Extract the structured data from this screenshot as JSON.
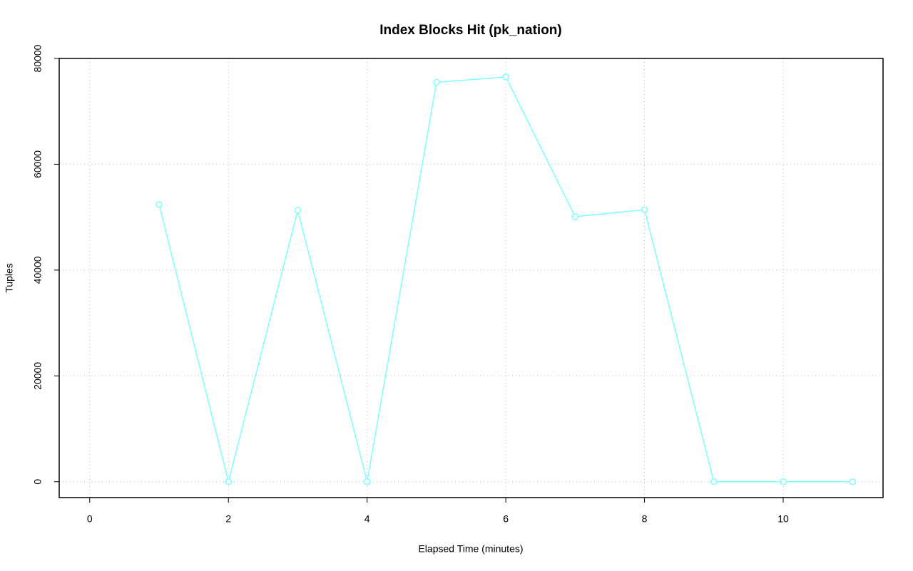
{
  "chart_data": {
    "type": "line",
    "title": "Index Blocks Hit (pk_nation)",
    "x_label": "Elapsed Time (minutes)",
    "y_label": "Tuples",
    "x": [
      1,
      2,
      3,
      4,
      5,
      6,
      7,
      8,
      9,
      10,
      11
    ],
    "series": [
      {
        "name": "pk_nation",
        "color": "#7fffff",
        "values": [
          52400,
          0,
          51300,
          0,
          75500,
          76500,
          50100,
          51400,
          0,
          0,
          0
        ]
      }
    ],
    "xlim": [
      -0.44,
      11.44
    ],
    "xticks": [
      0,
      2,
      4,
      6,
      8,
      10
    ],
    "ylim": [
      -3000,
      80000
    ],
    "yticks": [
      0,
      20000,
      40000,
      60000,
      80000
    ],
    "grid": true
  }
}
